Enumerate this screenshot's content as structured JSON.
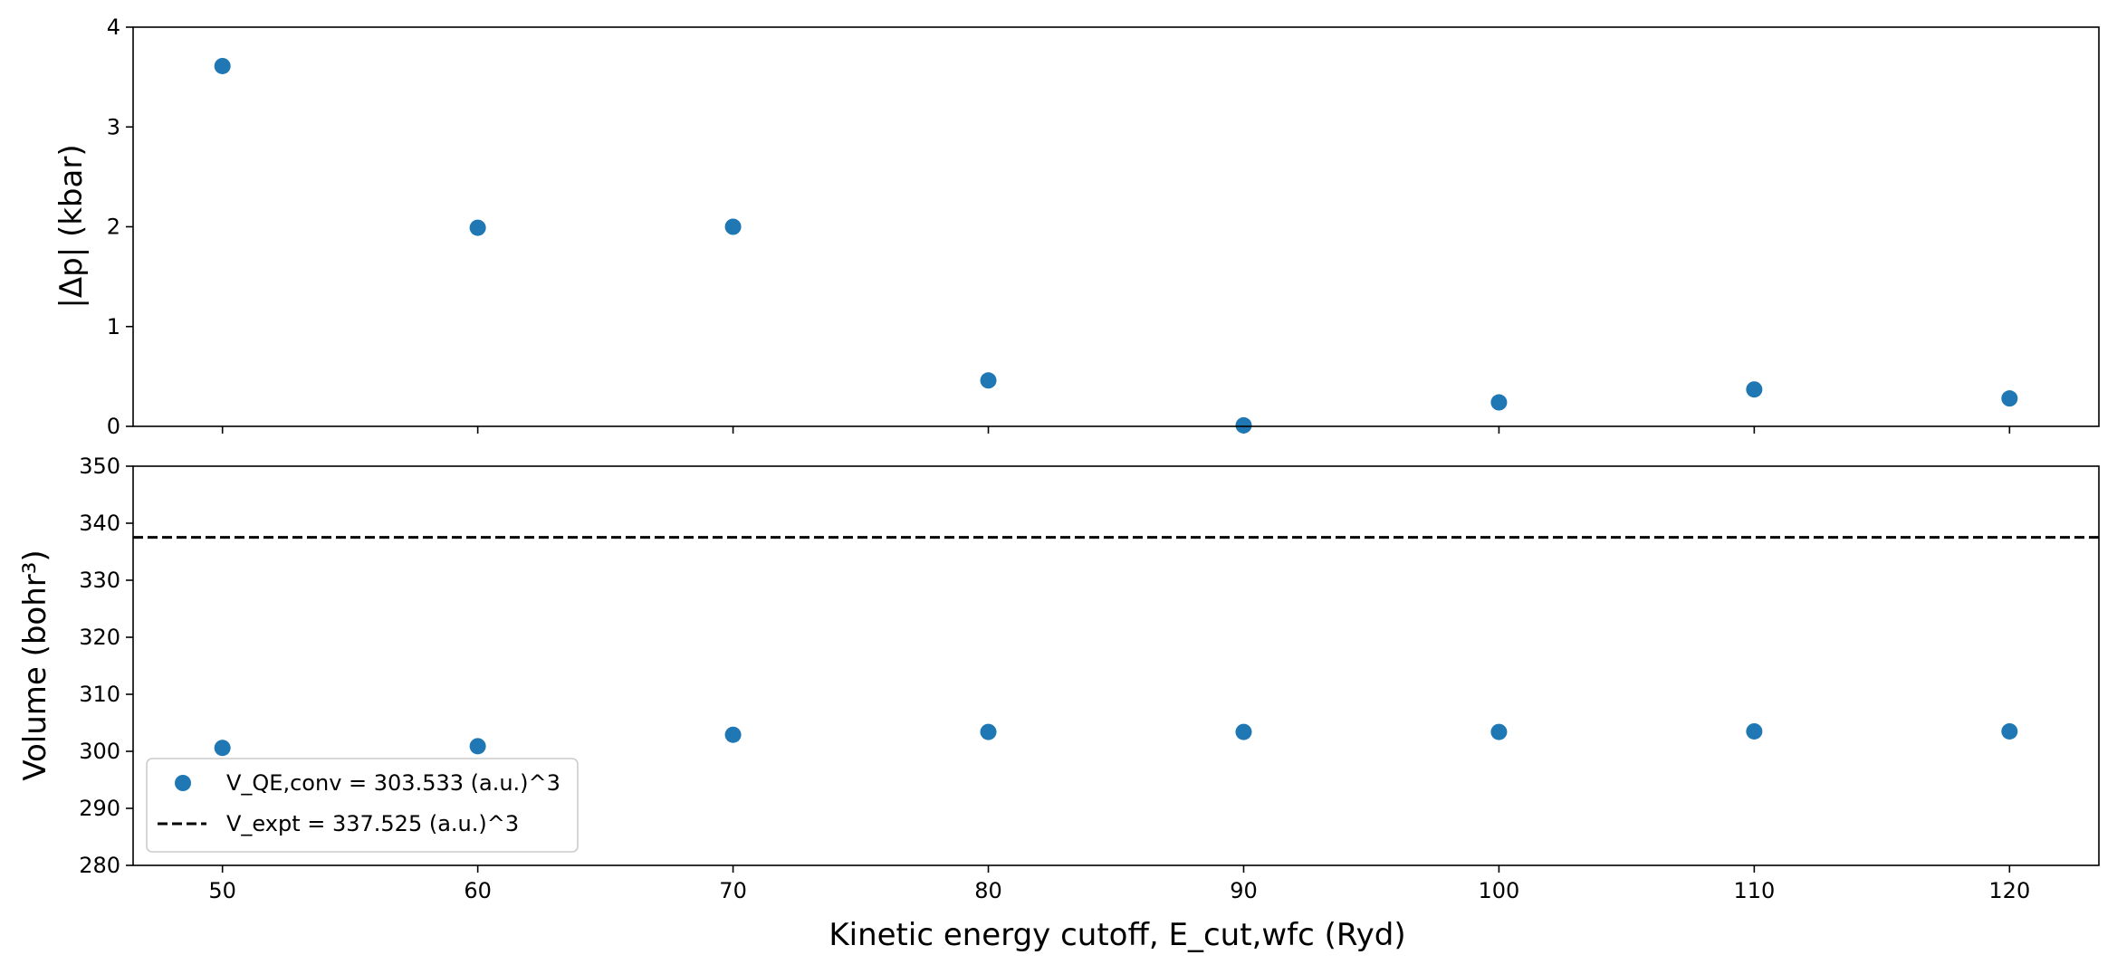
{
  "chart_data": [
    {
      "type": "scatter",
      "ylabel": "|Δp| (kbar)",
      "xlim": [
        46.5,
        123.5
      ],
      "ylim": [
        0,
        4
      ],
      "yticks": [
        "0",
        "1",
        "2",
        "3",
        "4"
      ],
      "show_xtick_labels": false,
      "grid": false,
      "series": [
        {
          "color": "#1f77b4",
          "x": [
            50,
            60,
            70,
            80,
            90,
            100,
            110,
            120
          ],
          "y": [
            3.61,
            1.99,
            2.0,
            0.46,
            0.01,
            0.24,
            0.37,
            0.28
          ]
        }
      ]
    },
    {
      "type": "scatter",
      "xlabel": "Kinetic energy cutoff, E_cut,wfc (Ryd)",
      "ylabel": "Volume (bohr³)",
      "xlim": [
        46.5,
        123.5
      ],
      "ylim": [
        280,
        350
      ],
      "xticks": [
        "50",
        "60",
        "70",
        "80",
        "90",
        "100",
        "110",
        "120"
      ],
      "yticks": [
        "280",
        "290",
        "300",
        "310",
        "320",
        "330",
        "340",
        "350"
      ],
      "grid": false,
      "legend_position": "lower-left",
      "series": [
        {
          "name": "V_QE,conv = 303.533 (a.u.)^3",
          "color": "#1f77b4",
          "x": [
            50,
            60,
            70,
            80,
            90,
            100,
            110,
            120
          ],
          "y": [
            300.6,
            300.9,
            302.9,
            303.4,
            303.4,
            303.4,
            303.5,
            303.5
          ]
        }
      ],
      "hlines": [
        {
          "name": "V_expt = 337.525 (a.u.)^3",
          "y": 337.525,
          "color": "#000000",
          "style": "dashed"
        }
      ]
    }
  ]
}
